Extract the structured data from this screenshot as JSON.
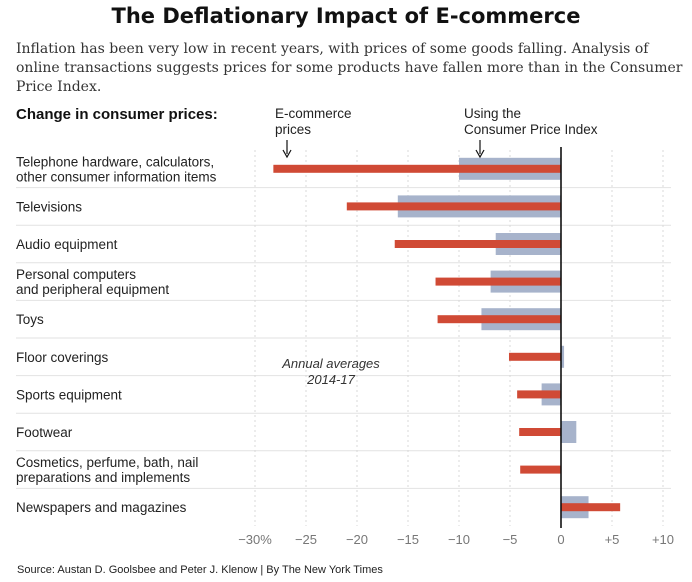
{
  "header": {
    "title": "The Deflationary Impact of E-commerce",
    "subtitle": "Inflation has been very low in recent years, with prices of some goods falling. Analysis of online transactions suggests prices for some products have fallen more than in the Consumer Price Index."
  },
  "section_label": "Change in consumer prices:",
  "footer": {
    "source": "Source: Austan D. Goolsbee and Peter J. Klenow  |  By The New York Times"
  },
  "chart_data": {
    "type": "bar",
    "orientation": "horizontal",
    "categories": [
      [
        "Telephone hardware, calculators,",
        "other consumer information items"
      ],
      [
        "Televisions"
      ],
      [
        "Audio equipment"
      ],
      [
        "Personal computers",
        "and peripheral equipment"
      ],
      [
        "Toys"
      ],
      [
        "Floor coverings"
      ],
      [
        "Sports equipment"
      ],
      [
        "Footwear"
      ],
      [
        "Cosmetics, perfume, bath, nail",
        "preparations and implements"
      ],
      [
        "Newspapers and magazines"
      ]
    ],
    "series": [
      {
        "name": "E-commerce prices",
        "legend_lines": [
          "E-commerce",
          "prices"
        ],
        "color": "#d04a35",
        "values": [
          -28.2,
          -21.0,
          -16.3,
          -12.3,
          -12.1,
          -5.1,
          -4.3,
          -4.1,
          -4.0,
          5.8
        ]
      },
      {
        "name": "Using the Consumer Price Index",
        "legend_lines": [
          "Using the",
          "Consumer Price Index"
        ],
        "color": "#a7b3cb",
        "values": [
          -10.0,
          -16.0,
          -6.4,
          -6.9,
          -7.8,
          0.3,
          -1.9,
          1.5,
          0.0,
          2.7
        ]
      }
    ],
    "annotation": [
      "Annual averages",
      "2014-17"
    ],
    "x_ticks": [
      -30,
      -25,
      -20,
      -15,
      -10,
      -5,
      0,
      5,
      10
    ],
    "x_tick_labels": [
      "−30%",
      "−25",
      "−20",
      "−15",
      "−10",
      "−5",
      "0",
      "+5",
      "+10"
    ],
    "xlim": [
      -30,
      10
    ],
    "grid": true,
    "legend": "top, above bars with arrows"
  }
}
